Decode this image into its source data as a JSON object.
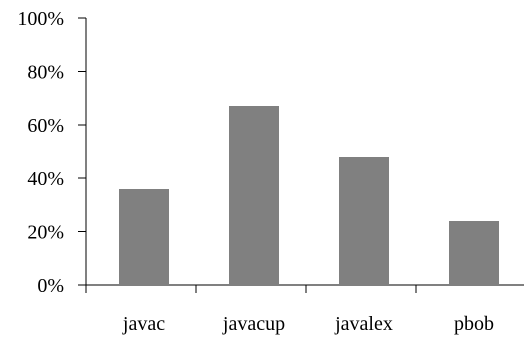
{
  "chart_data": {
    "type": "bar",
    "title": "",
    "xlabel": "",
    "ylabel": "",
    "categories": [
      "javac",
      "javacup",
      "javalex",
      "pbob"
    ],
    "values": [
      36,
      67,
      48,
      24
    ],
    "ylim": [
      0,
      100
    ],
    "yticks": [
      0,
      20,
      40,
      60,
      80,
      100
    ],
    "ytick_labels": [
      "0%",
      "20%",
      "40%",
      "60%",
      "80%",
      "100%"
    ],
    "bar_color": "#808080",
    "grid": false,
    "legend": "none"
  }
}
